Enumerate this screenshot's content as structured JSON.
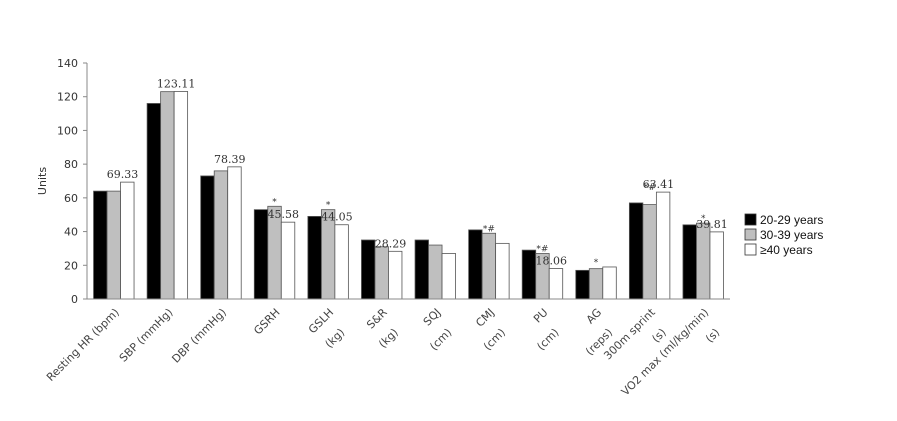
{
  "chart_data": {
    "type": "bar",
    "ylabel": "Units",
    "ylim": [
      0,
      140
    ],
    "yticks": [
      "0",
      "20",
      "40",
      "60",
      "80",
      "100",
      "120",
      "140"
    ],
    "categories": [
      [
        "Resting HR (bpm)"
      ],
      [
        "SBP (mmHg)"
      ],
      [
        "DBP (mmHg)"
      ],
      [
        "GSRH"
      ],
      [
        "GSLH",
        "(kg)"
      ],
      [
        "S&R",
        "(kg)"
      ],
      [
        "SQJ",
        "(cm)"
      ],
      [
        "CMJ",
        "(cm)"
      ],
      [
        "PU",
        "(cm)"
      ],
      [
        "AG",
        "(reps)"
      ],
      [
        "300m sprint",
        "(s)"
      ],
      [
        "VO2 max (ml/kg/min)",
        "(s)"
      ]
    ],
    "series": [
      {
        "name": "20-29 years",
        "color": "#000000",
        "values": [
          64,
          116,
          73,
          53,
          49,
          35,
          35,
          41,
          29,
          17,
          57,
          44
        ]
      },
      {
        "name": "30-39 years",
        "color": "#bfbfbf",
        "values": [
          64,
          123,
          76,
          55,
          53,
          31,
          32,
          39,
          27,
          18,
          56,
          45
        ]
      },
      {
        "name": "≥40 years",
        "color": "#ffffff",
        "values": [
          69.33,
          123.11,
          78.39,
          45.58,
          44.05,
          28.29,
          27,
          33,
          18.06,
          19,
          63.41,
          39.81
        ]
      }
    ],
    "data_labels": [
      "69.33",
      "123.11",
      "78.39",
      "45.58",
      "44.05",
      "28.29",
      "",
      "",
      "18.06",
      "",
      "63.41",
      "39.81"
    ],
    "annotations": [
      {
        "category": 3,
        "text": "*"
      },
      {
        "category": 4,
        "text": "*"
      },
      {
        "category": 7,
        "text": "*#"
      },
      {
        "category": 8,
        "text": "*#"
      },
      {
        "category": 9,
        "text": "*"
      },
      {
        "category": 10,
        "text": "*#"
      },
      {
        "category": 11,
        "text": "*"
      }
    ],
    "legend_position": "right",
    "grid": false
  }
}
